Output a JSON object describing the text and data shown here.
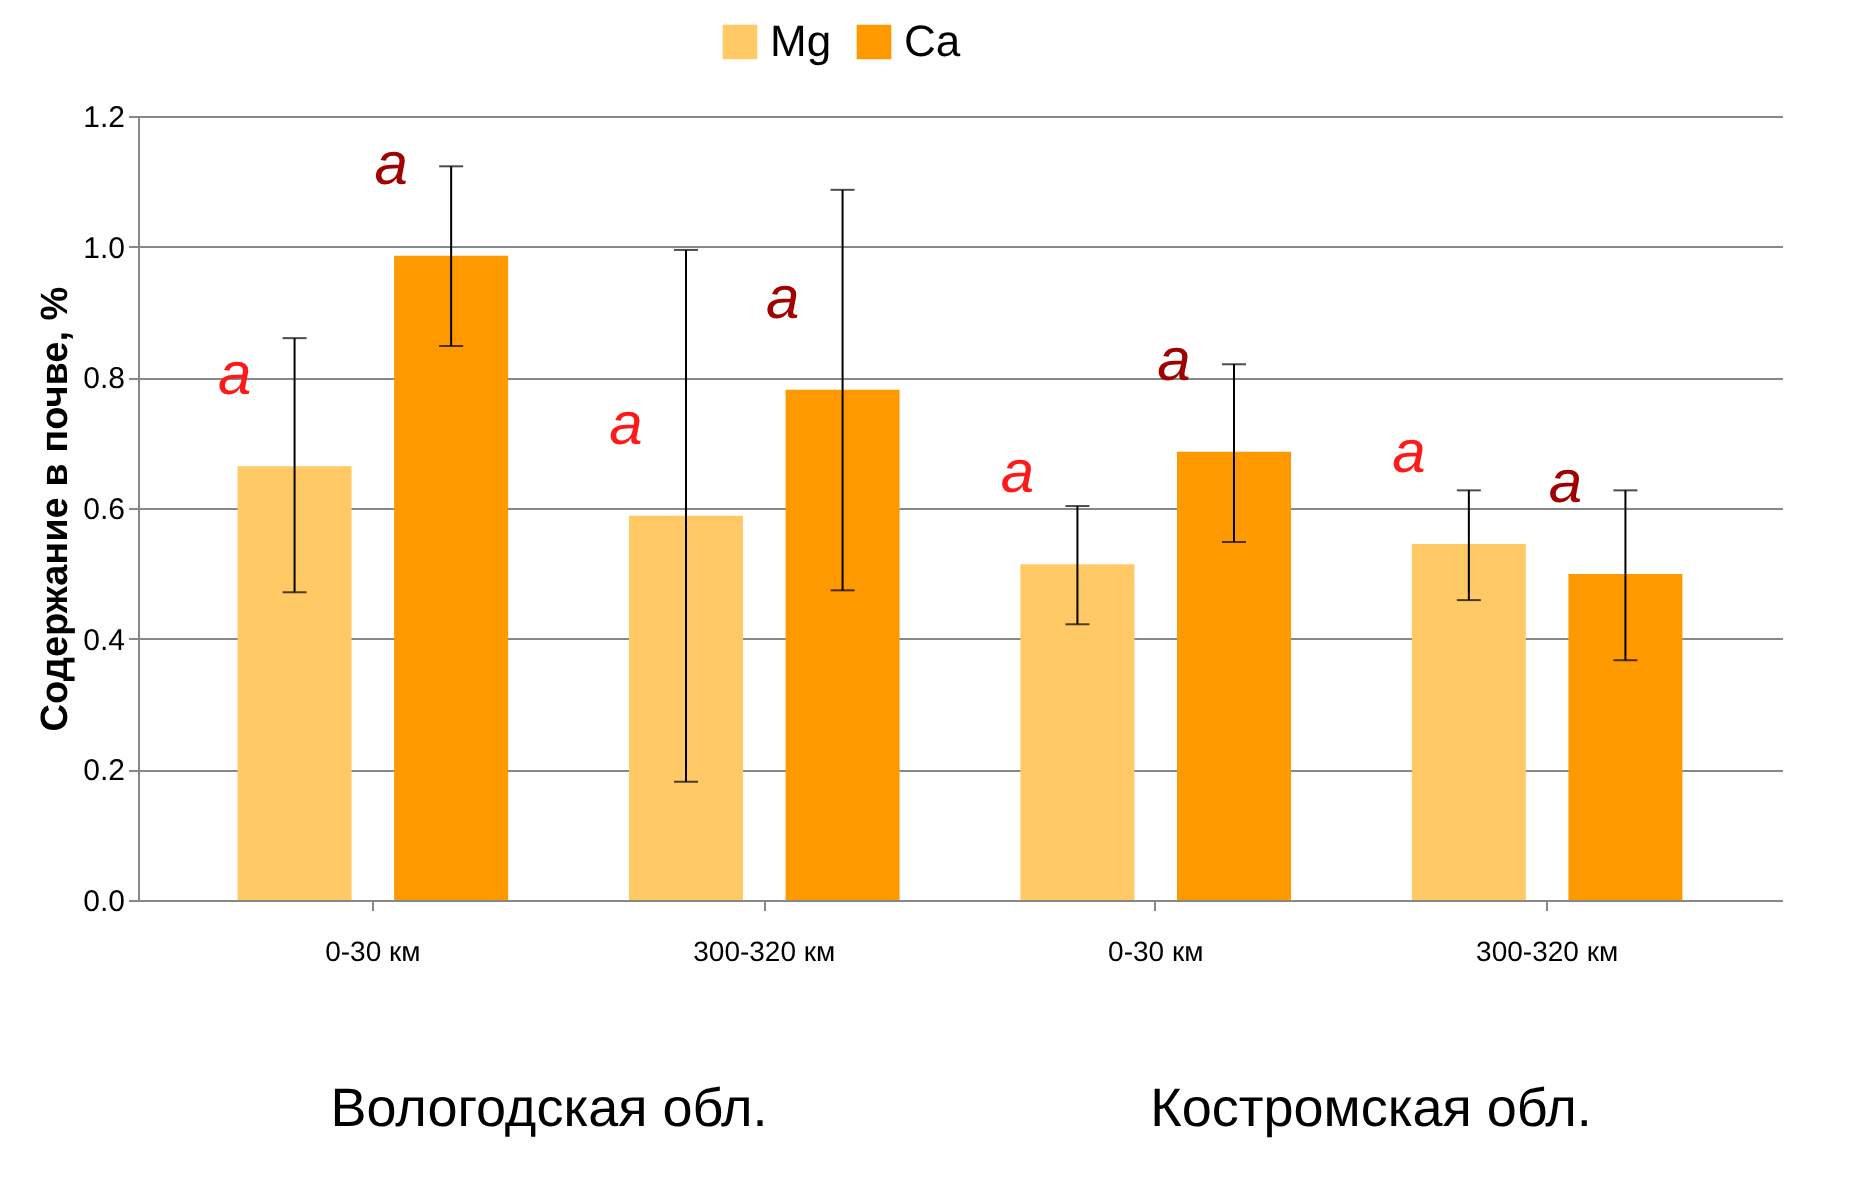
{
  "chart_data": {
    "type": "bar",
    "ylabel": "Содержание в почве, %",
    "categories": [
      "0-30 км",
      "300-320 км",
      "0-30 км",
      "300-320 км"
    ],
    "series": [
      {
        "name": "Mg",
        "color": "#ffc966",
        "values": [
          0.664,
          0.588,
          0.514,
          0.545
        ],
        "errors": [
          [
            0.471,
            0.86
          ],
          [
            0.181,
            0.995
          ],
          [
            0.422,
            0.603
          ],
          [
            0.459,
            0.627
          ]
        ]
      },
      {
        "name": "Ca",
        "color": "#ff9900",
        "values": [
          0.986,
          0.781,
          0.686,
          0.499
        ],
        "errors": [
          [
            0.848,
            1.123
          ],
          [
            0.474,
            1.087
          ],
          [
            0.548,
            0.82
          ],
          [
            0.367,
            0.627
          ]
        ]
      }
    ],
    "ylim": [
      0,
      1.2
    ],
    "yticks": [
      {
        "value": 0,
        "label": "0.0"
      },
      {
        "value": 0.2,
        "label": "0.2"
      },
      {
        "value": 0.4,
        "label": "0.4"
      },
      {
        "value": 0.6,
        "label": "0.6"
      },
      {
        "value": 0.8,
        "label": "0.8"
      },
      {
        "value": 1.0,
        "label": "1.0"
      },
      {
        "value": 1.2,
        "label": "1.2"
      }
    ],
    "grid": "y",
    "legend": "top",
    "annotations": [
      "a",
      "a",
      "a",
      "a",
      "a",
      "a",
      "a",
      "a",
      "Вологодская обл.",
      "Костромская обл."
    ]
  }
}
